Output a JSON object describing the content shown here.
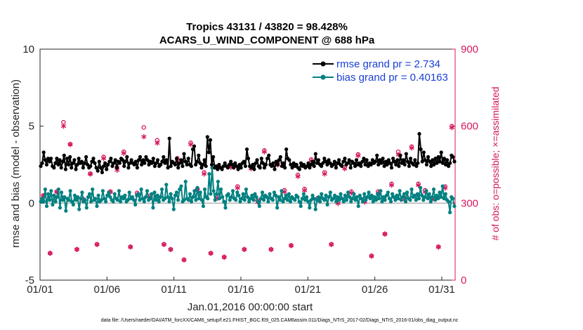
{
  "chart_data": {
    "type": "line",
    "title": "Tropics 43131 / 43820 = 98.428%",
    "subtitle": "ACARS_U_WIND_COMPONENT @ 688 hPa",
    "xlabel": "Jan.01,2016 00:00:00 start",
    "ylabel": "rmse and bias (model - observation)",
    "y2label": "# of obs: o=possible; ×=assimilated",
    "xlim": [
      1,
      32
    ],
    "ylim": [
      -5,
      10
    ],
    "y2lim": [
      0,
      900
    ],
    "x_tick_values": [
      1,
      6,
      11,
      16,
      21,
      26,
      31
    ],
    "x_tick_labels": [
      "01/01",
      "01/06",
      "01/11",
      "01/16",
      "01/21",
      "01/26",
      "01/31"
    ],
    "y_ticks": [
      "10",
      "5",
      "0",
      "-5"
    ],
    "y2_ticks": [
      "900",
      "600",
      "300",
      "0"
    ],
    "legend_position": "top-right",
    "colors": {
      "rmse": "#000000",
      "bias": "#008080",
      "obs": "#d6185f",
      "zero": "#b3b3b3"
    },
    "series": [
      {
        "name": "rmse grand pr = 2.734",
        "values": [
          2.4,
          2.6,
          3.3,
          2.8,
          2.5,
          2.9,
          2.7,
          2.9,
          2.4,
          2.3,
          2.6,
          2.9,
          2.5,
          2.8,
          2.3,
          2.7,
          3.1,
          2.2,
          2.9,
          2.5,
          3.0,
          2.3,
          2.6,
          2.8,
          2.2,
          2.5,
          2.9,
          2.6,
          2.7,
          2.3,
          2.6,
          3.0,
          2.5,
          2.3,
          2.4,
          2.7,
          2.9,
          2.6,
          2.3,
          2.1,
          2.7,
          2.3,
          2.0,
          2.4,
          2.6,
          2.2,
          2.5,
          2.7,
          2.9,
          2.4,
          2.6,
          2.8,
          2.3,
          2.7,
          2.6,
          2.9,
          2.8,
          2.4,
          2.7,
          3.0,
          2.3,
          2.6,
          2.8,
          2.6,
          2.5,
          2.7,
          2.3,
          2.8,
          3.0,
          2.5,
          2.8,
          2.6,
          3.0,
          2.8,
          2.5,
          2.7,
          2.6,
          2.9,
          2.4,
          2.6,
          2.8,
          2.4,
          2.5,
          2.7,
          3.0,
          2.6,
          2.8,
          2.3,
          4.2,
          2.4,
          2.7,
          2.6,
          2.5,
          2.9,
          2.3,
          2.6,
          2.8,
          2.4,
          3.2,
          2.7,
          2.5,
          2.9,
          2.5,
          2.4,
          3.5,
          3.7,
          2.5,
          2.7,
          3.1,
          2.6,
          2.3,
          2.5,
          2.8,
          2.4,
          4.3,
          3.3,
          4.1,
          2.5,
          3.0,
          2.3,
          2.4,
          2.2,
          2.5,
          2.3,
          2.2,
          2.4,
          2.6,
          2.4,
          2.3,
          2.5,
          2.7,
          2.5,
          2.3,
          2.6,
          2.4,
          2.2,
          2.5,
          2.3,
          2.6,
          2.7,
          2.4,
          3.5,
          2.9,
          2.4,
          2.3,
          2.5,
          2.2,
          2.6,
          2.8,
          2.4,
          2.3,
          2.9,
          2.6,
          2.3,
          2.5,
          2.9,
          3.1,
          2.5,
          2.4,
          2.6,
          2.2,
          2.7,
          2.5,
          2.8,
          3.0,
          2.4,
          2.6,
          2.3,
          3.5,
          2.9,
          2.8,
          2.5,
          2.3,
          2.6,
          2.4,
          2.5,
          2.3,
          2.2,
          2.6,
          2.4,
          2.5,
          2.3,
          2.4,
          2.6,
          2.3,
          2.5,
          2.7,
          2.4,
          3.2,
          2.6,
          2.8,
          2.5,
          2.4,
          2.6,
          2.9,
          2.7,
          2.5,
          2.8,
          2.6,
          2.4,
          2.5,
          2.7,
          2.3,
          2.6,
          2.8,
          2.5,
          2.4,
          2.7,
          2.9,
          2.5,
          2.6,
          2.8,
          2.3,
          2.7,
          2.6,
          2.4,
          2.8,
          2.5,
          2.6,
          2.4,
          2.7,
          2.9,
          2.5,
          2.8,
          2.4,
          2.6,
          2.5,
          2.8,
          2.6,
          2.7,
          3.1,
          2.5,
          2.8,
          2.6,
          2.9,
          2.4,
          2.7,
          2.5,
          2.8,
          2.6,
          2.3,
          2.9,
          2.7,
          2.5,
          2.8,
          2.4,
          3.1,
          2.6,
          2.8,
          2.5,
          3.2,
          2.7,
          2.4,
          2.9,
          2.6,
          2.5,
          2.8,
          2.4,
          2.6,
          4.5,
          3.5,
          2.7,
          3.3,
          2.8,
          2.5,
          3.0,
          2.7,
          2.4,
          2.8,
          2.5,
          2.9,
          2.6,
          3.0,
          2.7,
          3.3,
          2.6,
          2.9,
          2.5,
          2.8,
          2.4,
          2.6,
          3.1,
          3.0,
          2.7
        ]
      },
      {
        "name": "bias grand pr = 0.40163",
        "values": [
          0.1,
          0.3,
          0.1,
          0.9,
          -0.2,
          0.6,
          0.2,
          0.8,
          -0.1,
          0.5,
          0.1,
          0.4,
          0.9,
          -0.3,
          0.7,
          0.2,
          0.4,
          -0.5,
          0.3,
          0.2,
          0.8,
          0.1,
          -0.1,
          0.5,
          0.2,
          0.4,
          -0.4,
          0.3,
          0.7,
          0.1,
          0.2,
          -0.3,
          0.4,
          0.6,
          0.1,
          0.9,
          0.2,
          0.3,
          -0.2,
          0.5,
          0.1,
          0.2,
          0.8,
          0.3,
          0.1,
          0.5,
          0.7,
          0.4,
          0.2,
          0.1,
          0.6,
          0.3,
          0.2,
          0.8,
          0.1,
          0.4,
          0.3,
          0.5,
          0.1,
          0.2,
          0.7,
          0.3,
          0.4,
          0.2,
          -0.1,
          0.5,
          0.6,
          0.2,
          0.9,
          0.3,
          0.1,
          0.4,
          0.8,
          0.2,
          0.3,
          0.6,
          -0.3,
          0.7,
          0.2,
          0.5,
          0.1,
          0.4,
          0.9,
          0.2,
          0.3,
          1.2,
          0.4,
          0.1,
          0.6,
          0.3,
          -0.4,
          0.5,
          0.7,
          0.2,
          0.9,
          1.1,
          0.1,
          0.2,
          1.4,
          0.3,
          0.2,
          0.6,
          0.1,
          0.4,
          0.8,
          0.2,
          1.0,
          0.3,
          0.7,
          0.2,
          -0.2,
          0.9,
          0.4,
          0.3,
          1.9,
          0.6,
          2.3,
          0.8,
          0.2,
          0.6,
          1.4,
          0.3,
          0.9,
          0.4,
          0.1,
          -0.3,
          0.5,
          0.6,
          0.2,
          0.4,
          0.8,
          0.3,
          0.2,
          0.7,
          0.5,
          0.1,
          0.3,
          0.6,
          0.2,
          0.9,
          0.4,
          0.1,
          0.3,
          0.5,
          0.2,
          0.6,
          0.4,
          0.1,
          -0.2,
          0.3,
          0.7,
          0.2,
          0.5,
          0.4,
          0.1,
          0.6,
          0.3,
          0.2,
          0.7,
          0.5,
          -0.3,
          0.4,
          0.2,
          0.8,
          0.1,
          0.3,
          0.5,
          0.2,
          0.6,
          0.1,
          0.4,
          0.3,
          0.2,
          0.5,
          0.4,
          0.1,
          -0.2,
          0.3,
          0.6,
          0.2,
          0.4,
          0.1,
          -0.3,
          0.2,
          0.5,
          0.3,
          -0.4,
          0.2,
          0.4,
          0.1,
          0.6,
          0.3,
          0.2,
          0.5,
          -0.1,
          0.4,
          0.7,
          0.2,
          0.3,
          0.5,
          0.1,
          0.4,
          0.2,
          0.6,
          0.3,
          0.1,
          0.5,
          0.2,
          0.7,
          0.4,
          0.1,
          0.3,
          0.6,
          0.2,
          0.4,
          -0.2,
          0.5,
          0.3,
          0.1,
          0.6,
          0.2,
          0.4,
          0.7,
          0.3,
          0.5,
          0.1,
          0.4,
          0.2,
          0.6,
          0.3,
          0.8,
          0.1,
          0.4,
          0.2,
          0.5,
          0.7,
          0.3,
          0.1,
          0.6,
          0.4,
          0.2,
          0.5,
          0.3,
          0.8,
          0.2,
          0.4,
          0.6,
          0.1,
          0.7,
          0.3,
          0.2,
          0.9,
          0.4,
          0.5,
          0.2,
          0.6,
          0.3,
          1.0,
          0.5,
          0.2,
          0.4,
          0.8,
          0.3,
          0.6,
          0.1,
          0.4,
          0.9,
          0.2,
          0.5,
          0.3,
          0.7,
          0.4,
          1.1,
          0.3,
          0.6,
          0.2,
          0.1,
          -0.6,
          0.4,
          0.3,
          -0.2
        ]
      },
      {
        "name": "possible obs",
        "x": [
          1.25,
          1.75,
          2.25,
          2.75,
          3.25,
          3.75,
          4.25,
          4.75,
          5.25,
          5.75,
          6.25,
          6.75,
          7.25,
          7.75,
          8.25,
          8.75,
          9.25,
          9.75,
          10.25,
          10.75,
          11.25,
          11.75,
          12.25,
          12.75,
          13.25,
          13.75,
          14.25,
          14.75,
          15.25,
          15.75,
          16.25,
          16.75,
          17.25,
          17.75,
          18.25,
          18.75,
          19.25,
          19.75,
          20.25,
          20.75,
          21.25,
          21.75,
          22.25,
          22.75,
          23.25,
          23.75,
          24.25,
          24.75,
          25.25,
          25.75,
          26.25,
          26.75,
          27.25,
          27.75,
          28.25,
          28.75,
          29.25,
          29.75,
          30.25,
          30.75,
          31.25,
          31.75
        ],
        "values": [
          330,
          105,
          345,
          615,
          530,
          120,
          315,
          415,
          140,
          480,
          345,
          440,
          500,
          130,
          340,
          595,
          330,
          545,
          140,
          120,
          475,
          80,
          535,
          355,
          420,
          105,
          325,
          90,
          445,
          365,
          120,
          440,
          310,
          505,
          120,
          455,
          350,
          135,
          410,
          355,
          470,
          320,
          420,
          140,
          305,
          440,
          345,
          490,
          310,
          95,
          345,
          180,
          375,
          500,
          320,
          520,
          375,
          350,
          320,
          130,
          365,
          600
        ]
      },
      {
        "name": "assimilated obs",
        "x": [
          1.25,
          1.75,
          2.25,
          2.75,
          3.25,
          3.75,
          4.25,
          4.75,
          5.25,
          5.75,
          6.25,
          6.75,
          7.25,
          7.75,
          8.25,
          8.75,
          9.25,
          9.75,
          10.25,
          10.75,
          11.25,
          11.75,
          12.25,
          12.75,
          13.25,
          13.75,
          14.25,
          14.75,
          15.25,
          15.75,
          16.25,
          16.75,
          17.25,
          17.75,
          18.25,
          18.75,
          19.25,
          19.75,
          20.25,
          20.75,
          21.25,
          21.75,
          22.25,
          22.75,
          23.25,
          23.75,
          24.25,
          24.75,
          25.25,
          25.75,
          26.25,
          26.75,
          27.25,
          27.75,
          28.25,
          28.75,
          29.25,
          29.75,
          30.25,
          30.75,
          31.25,
          31.75
        ],
        "values": [
          330,
          105,
          345,
          600,
          530,
          120,
          310,
          415,
          140,
          475,
          345,
          430,
          495,
          130,
          335,
          560,
          325,
          535,
          140,
          120,
          465,
          80,
          530,
          350,
          415,
          105,
          320,
          90,
          440,
          360,
          120,
          435,
          305,
          500,
          120,
          450,
          345,
          135,
          405,
          350,
          465,
          315,
          415,
          140,
          300,
          435,
          340,
          485,
          305,
          95,
          340,
          180,
          370,
          490,
          315,
          515,
          370,
          345,
          315,
          130,
          360,
          595
        ]
      }
    ]
  },
  "footer": "data file: /Users/raeder/DAI/ATM_forcXX/CAM6_setup/f.e21.FHIST_BGC.f09_025.CAM6assim.011/Diags_NTrS_2017-02/Diags_NTrS_2016-01/obs_diag_output.nc"
}
